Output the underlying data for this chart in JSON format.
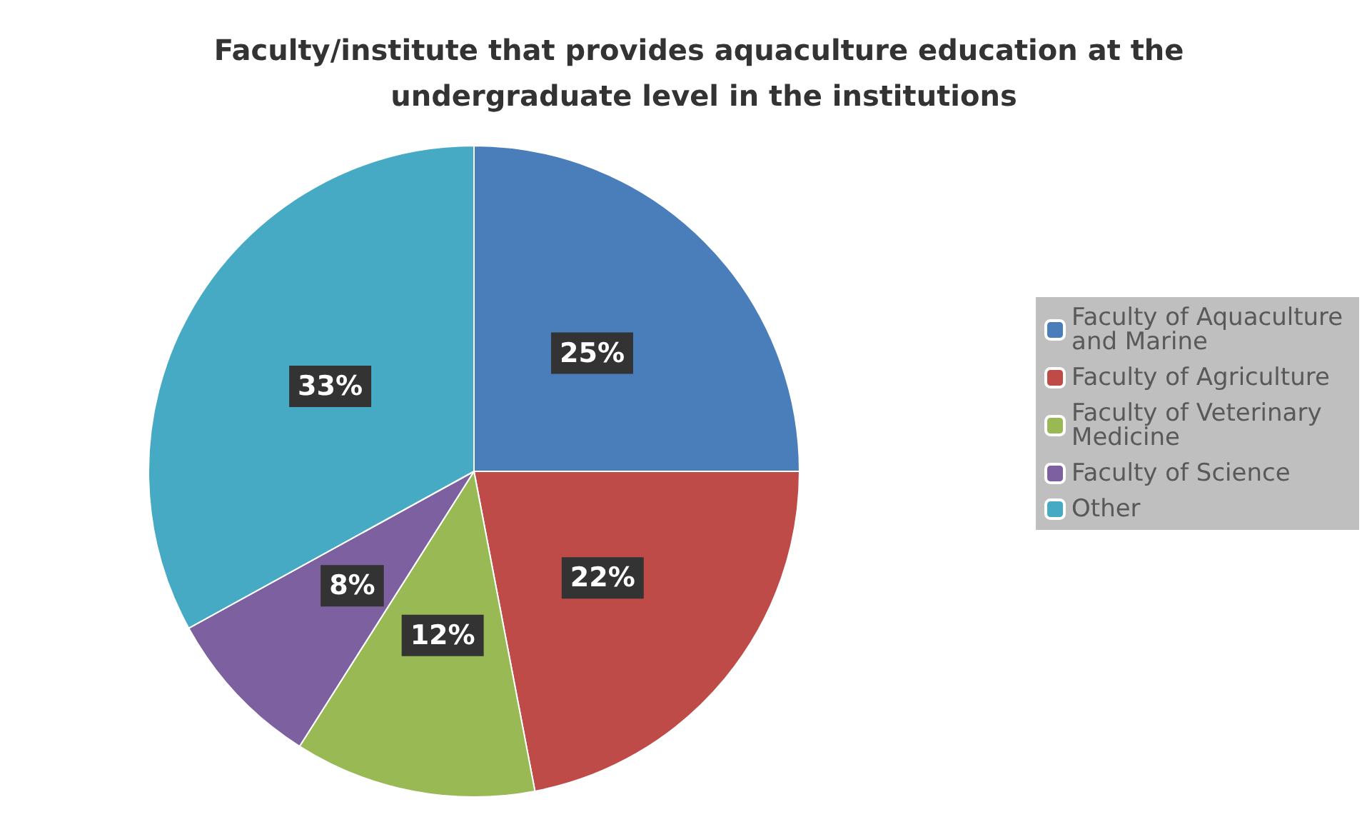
{
  "chart_data": {
    "type": "pie",
    "title": "Faculty/institute that provides aquaculture education at the undergraduate level in the institutions",
    "categories": [
      "Faculty of Aquaculture and Marine",
      "Faculty of Agriculture",
      "Faculty of Veterinary Medicine",
      "Faculty of Science",
      "Other"
    ],
    "values": [
      25,
      22,
      12,
      8,
      33
    ],
    "colors": [
      "#4a7ebb",
      "#be4b48",
      "#98b954",
      "#7d60a0",
      "#46aac5"
    ],
    "value_labels": [
      "25%",
      "22%",
      "12%",
      "8%",
      "33%"
    ],
    "legend": "right"
  }
}
